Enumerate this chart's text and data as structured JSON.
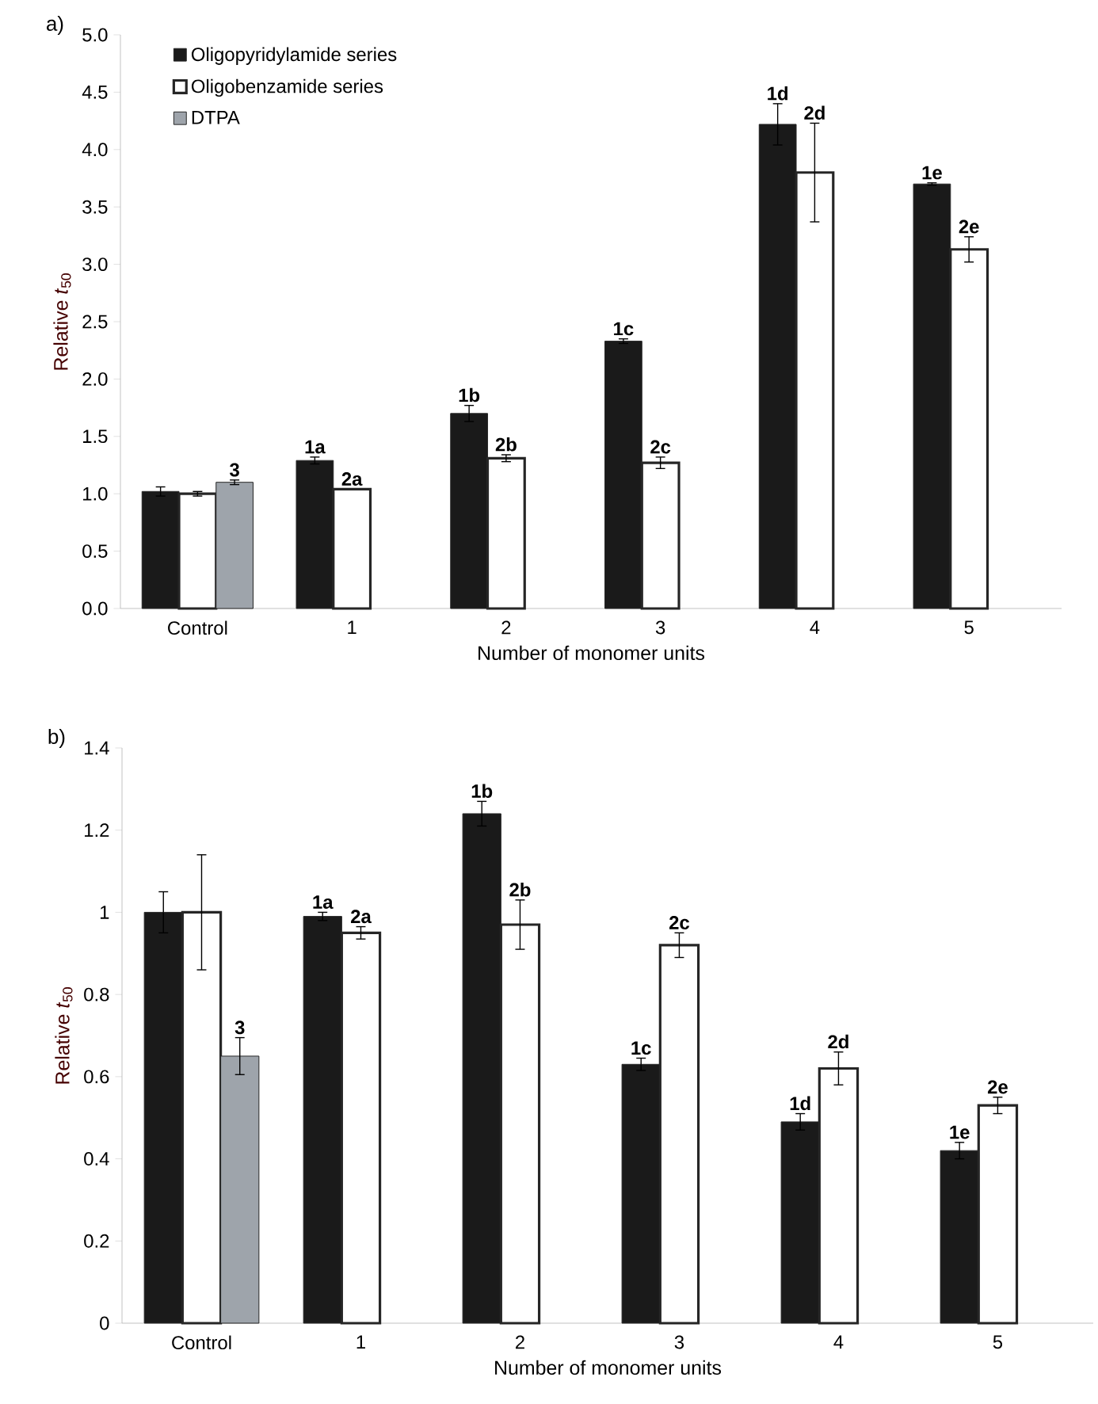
{
  "chart_data": [
    {
      "type": "bar",
      "title": "a)",
      "xlabel": "Number of monomer units",
      "ylabel": "Relative *t*$_{50}$",
      "categories": [
        "Control",
        "1",
        "2",
        "3",
        "4",
        "5"
      ],
      "ylim": [
        0,
        5
      ],
      "yticks": [
        {
          "value": 0,
          "label": "0.0"
        },
        {
          "value": 0.5,
          "label": "0.5"
        },
        {
          "value": 1,
          "label": "1.0"
        },
        {
          "value": 1.5,
          "label": "1.5"
        },
        {
          "value": 2,
          "label": "2.0"
        },
        {
          "value": 2.5,
          "label": "2.5"
        },
        {
          "value": 3,
          "label": "3.0"
        },
        {
          "value": 3.5,
          "label": "3.5"
        },
        {
          "value": 4,
          "label": "4.0"
        },
        {
          "value": 4.5,
          "label": "4.5"
        },
        {
          "value": 5,
          "label": "5.0"
        }
      ],
      "legend": "top left",
      "series": [
        {
          "name": "Oligopyridylamide series",
          "color": "#1a1a1a",
          "values": [
            1.02,
            1.29,
            1.7,
            2.33,
            4.22,
            3.7
          ],
          "errors": [
            0.04,
            0.03,
            0.07,
            0.02,
            0.18,
            0.01
          ]
        },
        {
          "name": "Oligobenzamide series",
          "color": "#ffffff",
          "values": [
            1.0,
            1.04,
            1.31,
            1.27,
            3.8,
            3.13
          ],
          "errors": [
            0.02,
            null,
            0.03,
            0.05,
            0.43,
            0.11
          ]
        },
        {
          "name": "DTPA",
          "color": "#9ea4ab",
          "values": [
            1.1,
            null,
            null,
            null,
            null,
            null
          ],
          "errors": [
            0.02,
            null,
            null,
            null,
            null,
            null
          ]
        }
      ],
      "annotations": [
        "3",
        "1a",
        "2a",
        "1b",
        "2b",
        "1c",
        "2c",
        "1d",
        "2d",
        "1e",
        "2e"
      ]
    },
    {
      "type": "bar",
      "title": "b)",
      "xlabel": "Number of monomer units",
      "ylabel": "Relative *t*$_{50}$",
      "categories": [
        "Control",
        "1",
        "2",
        "3",
        "4",
        "5"
      ],
      "ylim": [
        0,
        1.4
      ],
      "yticks": [
        0,
        0.2,
        0.4,
        0.6,
        0.8,
        1,
        1.2,
        1.4
      ],
      "series": [
        {
          "color": "#1a1a1a",
          "values": [
            1.0,
            0.99,
            1.24,
            0.63,
            0.49,
            0.42
          ],
          "errors": [
            0.05,
            0.01,
            0.03,
            0.015,
            0.02,
            0.02
          ]
        },
        {
          "color": "#ffffff",
          "values": [
            1.0,
            0.95,
            0.97,
            0.92,
            0.62,
            0.53
          ],
          "errors": [
            0.14,
            0.015,
            0.06,
            0.03,
            0.04,
            0.02
          ]
        },
        {
          "color": "#9ea4ab",
          "values": [
            0.65,
            null,
            null,
            null,
            null,
            null
          ],
          "errors": [
            0.045,
            null,
            null,
            null,
            null,
            null
          ]
        }
      ],
      "annotations": [
        "3",
        "1a",
        "2a",
        "1b",
        "2b",
        "1c",
        "2c",
        "1d",
        "2d",
        "1e",
        "2e"
      ]
    }
  ]
}
